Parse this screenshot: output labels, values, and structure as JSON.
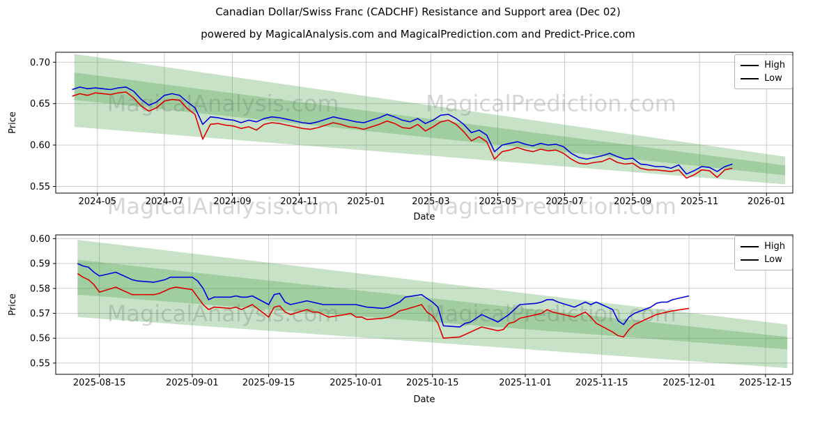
{
  "title": "Canadian Dollar/Swiss Franc (CADCHF) Resistance and Support area (Dec 02)",
  "subtitle": "powered by MagicalAnalysis.com and MagicalPrediction.com and Predict-Price.com",
  "watermarks": [
    "MagicalAnalysis.com",
    "MagicalPrediction.com"
  ],
  "colors": {
    "high": "#0000dd",
    "low": "#dd0000",
    "band": "#44a044",
    "grid": "#cccccc",
    "spine": "#000000",
    "watermark": "rgba(120,120,120,0.30)"
  },
  "chart_data": [
    {
      "type": "line",
      "xlabel": "Date",
      "ylabel": "Price",
      "grid": true,
      "legend_position": "upper right",
      "ylim": [
        0.542,
        0.712
      ],
      "y_ticks": [
        0.55,
        0.6,
        0.65,
        0.7
      ],
      "xlim": [
        "2024-03-24",
        "2026-01-25"
      ],
      "x_ticks": [
        {
          "v": "2024-05-01",
          "label": "2024-05"
        },
        {
          "v": "2024-07-01",
          "label": "2024-07"
        },
        {
          "v": "2024-09-01",
          "label": "2024-09"
        },
        {
          "v": "2024-11-01",
          "label": "2024-11"
        },
        {
          "v": "2025-01-01",
          "label": "2025-01"
        },
        {
          "v": "2025-03-01",
          "label": "2025-03"
        },
        {
          "v": "2025-05-01",
          "label": "2025-05"
        },
        {
          "v": "2025-07-01",
          "label": "2025-07"
        },
        {
          "v": "2025-09-01",
          "label": "2025-09"
        },
        {
          "v": "2025-11-01",
          "label": "2025-11"
        },
        {
          "v": "2026-01-01",
          "label": "2026-01"
        }
      ],
      "bands": [
        {
          "x": [
            "2024-04-10",
            "2026-01-18"
          ],
          "top": [
            0.71,
            0.586
          ],
          "bottom": [
            0.6545,
            0.5635
          ]
        },
        {
          "x": [
            "2024-04-10",
            "2026-01-18"
          ],
          "top": [
            0.6875,
            0.5755
          ],
          "bottom": [
            0.622,
            0.5525
          ]
        }
      ],
      "x": [
        "2024-04-08",
        "2024-04-15",
        "2024-04-22",
        "2024-04-29",
        "2024-05-06",
        "2024-05-13",
        "2024-05-20",
        "2024-05-27",
        "2024-06-03",
        "2024-06-10",
        "2024-06-17",
        "2024-06-24",
        "2024-07-01",
        "2024-07-08",
        "2024-07-15",
        "2024-07-22",
        "2024-07-29",
        "2024-08-05",
        "2024-08-12",
        "2024-08-19",
        "2024-08-26",
        "2024-09-02",
        "2024-09-09",
        "2024-09-16",
        "2024-09-23",
        "2024-09-30",
        "2024-10-07",
        "2024-10-14",
        "2024-10-21",
        "2024-10-28",
        "2024-11-04",
        "2024-11-11",
        "2024-11-18",
        "2024-11-25",
        "2024-12-02",
        "2024-12-09",
        "2024-12-16",
        "2024-12-23",
        "2024-12-30",
        "2025-01-06",
        "2025-01-13",
        "2025-01-20",
        "2025-01-27",
        "2025-02-03",
        "2025-02-10",
        "2025-02-17",
        "2025-02-24",
        "2025-03-03",
        "2025-03-10",
        "2025-03-17",
        "2025-03-24",
        "2025-03-31",
        "2025-04-07",
        "2025-04-14",
        "2025-04-21",
        "2025-04-28",
        "2025-05-05",
        "2025-05-12",
        "2025-05-19",
        "2025-05-26",
        "2025-06-02",
        "2025-06-09",
        "2025-06-16",
        "2025-06-23",
        "2025-06-30",
        "2025-07-07",
        "2025-07-14",
        "2025-07-21",
        "2025-07-28",
        "2025-08-04",
        "2025-08-11",
        "2025-08-18",
        "2025-08-25",
        "2025-09-01",
        "2025-09-08",
        "2025-09-15",
        "2025-09-22",
        "2025-09-29",
        "2025-10-06",
        "2025-10-13",
        "2025-10-20",
        "2025-10-27",
        "2025-11-03",
        "2025-11-10",
        "2025-11-17",
        "2025-11-24",
        "2025-12-01"
      ],
      "series": [
        {
          "name": "High",
          "color": "#0000dd",
          "values": [
            0.667,
            0.67,
            0.668,
            0.669,
            0.668,
            0.667,
            0.669,
            0.67,
            0.665,
            0.655,
            0.648,
            0.652,
            0.66,
            0.662,
            0.66,
            0.652,
            0.645,
            0.625,
            0.634,
            0.633,
            0.631,
            0.63,
            0.627,
            0.63,
            0.628,
            0.632,
            0.634,
            0.633,
            0.631,
            0.629,
            0.627,
            0.626,
            0.628,
            0.631,
            0.634,
            0.632,
            0.63,
            0.628,
            0.627,
            0.63,
            0.633,
            0.637,
            0.634,
            0.63,
            0.628,
            0.632,
            0.626,
            0.63,
            0.636,
            0.637,
            0.632,
            0.625,
            0.615,
            0.618,
            0.612,
            0.592,
            0.6,
            0.602,
            0.604,
            0.601,
            0.599,
            0.602,
            0.6,
            0.601,
            0.598,
            0.59,
            0.585,
            0.583,
            0.585,
            0.587,
            0.59,
            0.586,
            0.583,
            0.584,
            0.577,
            0.576,
            0.574,
            0.574,
            0.572,
            0.576,
            0.565,
            0.569,
            0.574,
            0.573,
            0.568,
            0.574,
            0.577
          ]
        },
        {
          "name": "Low",
          "color": "#dd0000",
          "values": [
            0.659,
            0.662,
            0.66,
            0.663,
            0.662,
            0.661,
            0.663,
            0.664,
            0.657,
            0.647,
            0.641,
            0.645,
            0.653,
            0.655,
            0.654,
            0.644,
            0.637,
            0.607,
            0.625,
            0.626,
            0.624,
            0.623,
            0.62,
            0.622,
            0.618,
            0.625,
            0.627,
            0.626,
            0.624,
            0.622,
            0.62,
            0.619,
            0.621,
            0.624,
            0.627,
            0.625,
            0.622,
            0.621,
            0.619,
            0.622,
            0.625,
            0.629,
            0.626,
            0.621,
            0.62,
            0.625,
            0.617,
            0.622,
            0.628,
            0.63,
            0.625,
            0.616,
            0.605,
            0.61,
            0.604,
            0.583,
            0.592,
            0.594,
            0.597,
            0.594,
            0.592,
            0.595,
            0.593,
            0.594,
            0.59,
            0.583,
            0.578,
            0.577,
            0.579,
            0.58,
            0.584,
            0.579,
            0.577,
            0.578,
            0.572,
            0.57,
            0.57,
            0.569,
            0.568,
            0.57,
            0.56,
            0.564,
            0.57,
            0.569,
            0.561,
            0.57,
            0.572
          ]
        }
      ]
    },
    {
      "type": "line",
      "xlabel": "Date",
      "ylabel": "Price",
      "grid": true,
      "legend_position": "upper right",
      "ylim": [
        0.5455,
        0.6015
      ],
      "y_ticks": [
        0.55,
        0.56,
        0.57,
        0.58,
        0.59,
        0.6
      ],
      "xlim": [
        "2025-08-07",
        "2025-12-20"
      ],
      "x_ticks": [
        {
          "v": "2025-08-15",
          "label": "2025-08-15"
        },
        {
          "v": "2025-09-01",
          "label": "2025-09-01"
        },
        {
          "v": "2025-09-15",
          "label": "2025-09-15"
        },
        {
          "v": "2025-10-01",
          "label": "2025-10-01"
        },
        {
          "v": "2025-10-15",
          "label": "2025-10-15"
        },
        {
          "v": "2025-11-01",
          "label": "2025-11-01"
        },
        {
          "v": "2025-11-15",
          "label": "2025-11-15"
        },
        {
          "v": "2025-12-01",
          "label": "2025-12-01"
        },
        {
          "v": "2025-12-15",
          "label": "2025-12-15"
        }
      ],
      "bands": [
        {
          "x": [
            "2025-08-11",
            "2025-12-19"
          ],
          "top": [
            0.5995,
            0.5655
          ],
          "bottom": [
            0.5775,
            0.5555
          ]
        },
        {
          "x": [
            "2025-08-11",
            "2025-12-19"
          ],
          "top": [
            0.5915,
            0.5605
          ],
          "bottom": [
            0.5685,
            0.548
          ]
        }
      ],
      "x": [
        "2025-08-11",
        "2025-08-12",
        "2025-08-13",
        "2025-08-14",
        "2025-08-15",
        "2025-08-18",
        "2025-08-19",
        "2025-08-20",
        "2025-08-21",
        "2025-08-22",
        "2025-08-25",
        "2025-08-26",
        "2025-08-27",
        "2025-08-28",
        "2025-08-29",
        "2025-09-01",
        "2025-09-02",
        "2025-09-03",
        "2025-09-04",
        "2025-09-05",
        "2025-09-08",
        "2025-09-09",
        "2025-09-10",
        "2025-09-11",
        "2025-09-12",
        "2025-09-15",
        "2025-09-16",
        "2025-09-17",
        "2025-09-18",
        "2025-09-19",
        "2025-09-22",
        "2025-09-23",
        "2025-09-24",
        "2025-09-25",
        "2025-09-26",
        "2025-09-29",
        "2025-09-30",
        "2025-10-01",
        "2025-10-02",
        "2025-10-03",
        "2025-10-06",
        "2025-10-07",
        "2025-10-08",
        "2025-10-09",
        "2025-10-10",
        "2025-10-13",
        "2025-10-14",
        "2025-10-15",
        "2025-10-16",
        "2025-10-17",
        "2025-10-20",
        "2025-10-21",
        "2025-10-22",
        "2025-10-23",
        "2025-10-24",
        "2025-10-27",
        "2025-10-28",
        "2025-10-29",
        "2025-10-30",
        "2025-10-31",
        "2025-11-03",
        "2025-11-04",
        "2025-11-05",
        "2025-11-06",
        "2025-11-07",
        "2025-11-10",
        "2025-11-11",
        "2025-11-12",
        "2025-11-13",
        "2025-11-14",
        "2025-11-17",
        "2025-11-18",
        "2025-11-19",
        "2025-11-20",
        "2025-11-21",
        "2025-11-24",
        "2025-11-25",
        "2025-11-26",
        "2025-11-27",
        "2025-11-28",
        "2025-12-01"
      ],
      "series": [
        {
          "name": "High",
          "color": "#0000dd",
          "values": [
            0.59,
            0.589,
            0.5885,
            0.5865,
            0.585,
            0.5865,
            0.5855,
            0.5845,
            0.5835,
            0.583,
            0.5825,
            0.583,
            0.5835,
            0.5845,
            0.5845,
            0.5845,
            0.583,
            0.58,
            0.5755,
            0.5765,
            0.5765,
            0.577,
            0.5765,
            0.5765,
            0.577,
            0.5735,
            0.5775,
            0.578,
            0.5745,
            0.5735,
            0.575,
            0.5745,
            0.574,
            0.5735,
            0.5735,
            0.5735,
            0.5735,
            0.5735,
            0.573,
            0.5725,
            0.572,
            0.5725,
            0.5735,
            0.5745,
            0.5765,
            0.5775,
            0.576,
            0.5745,
            0.5725,
            0.565,
            0.5645,
            0.566,
            0.5665,
            0.568,
            0.5695,
            0.5665,
            0.568,
            0.5695,
            0.5715,
            0.5735,
            0.574,
            0.5745,
            0.5755,
            0.5755,
            0.5745,
            0.5725,
            0.5735,
            0.5745,
            0.5735,
            0.5745,
            0.5715,
            0.567,
            0.5655,
            0.5685,
            0.57,
            0.5725,
            0.574,
            0.5745,
            0.5745,
            0.5755,
            0.577
          ]
        },
        {
          "name": "Low",
          "color": "#dd0000",
          "values": [
            0.586,
            0.5845,
            0.5835,
            0.5815,
            0.5785,
            0.5805,
            0.5795,
            0.5785,
            0.5775,
            0.5775,
            0.5775,
            0.578,
            0.579,
            0.58,
            0.5805,
            0.5795,
            0.5765,
            0.5735,
            0.5715,
            0.5725,
            0.572,
            0.5725,
            0.5715,
            0.5725,
            0.5735,
            0.5685,
            0.5725,
            0.573,
            0.5705,
            0.5695,
            0.5715,
            0.5705,
            0.5705,
            0.5695,
            0.5685,
            0.5695,
            0.57,
            0.5685,
            0.5685,
            0.5675,
            0.568,
            0.5685,
            0.5695,
            0.571,
            0.5715,
            0.5735,
            0.5705,
            0.569,
            0.566,
            0.56,
            0.5605,
            0.5615,
            0.5625,
            0.5635,
            0.5645,
            0.563,
            0.5635,
            0.566,
            0.5665,
            0.568,
            0.5695,
            0.57,
            0.5715,
            0.5705,
            0.57,
            0.5685,
            0.5695,
            0.5705,
            0.5685,
            0.566,
            0.5625,
            0.561,
            0.5605,
            0.5635,
            0.5655,
            0.5685,
            0.5695,
            0.57,
            0.5705,
            0.571,
            0.572
          ]
        }
      ]
    }
  ]
}
